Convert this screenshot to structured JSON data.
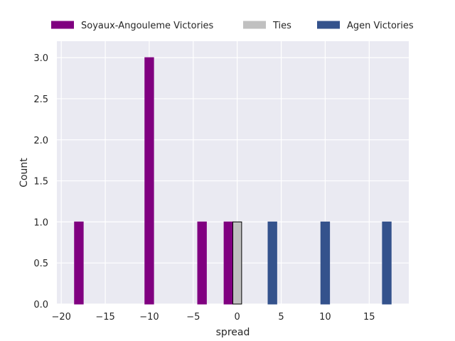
{
  "chart_data": {
    "type": "bar",
    "title": "",
    "xlabel": "spread",
    "ylabel": "Count",
    "xlim": [
      -20.5,
      19.5
    ],
    "ylim": [
      0,
      3.2
    ],
    "xticks": [
      -20,
      -15,
      -10,
      -5,
      0,
      5,
      10,
      15
    ],
    "xtick_labels": [
      "−20",
      "−15",
      "−10",
      "−5",
      "0",
      "5",
      "10",
      "15"
    ],
    "yticks": [
      0,
      0.5,
      1,
      1.5,
      2,
      2.5,
      3
    ],
    "ytick_labels": [
      "0.0",
      "0.5",
      "1.0",
      "1.5",
      "2.0",
      "2.5",
      "3.0"
    ],
    "grid": true,
    "legend_position": "top",
    "series": [
      {
        "name": "Soyaux-Angouleme Victories",
        "color": "#800080",
        "edgecolor": "#800080",
        "bins": [
          {
            "start": -18.5,
            "end": -17.5,
            "count": 1
          },
          {
            "start": -10.5,
            "end": -9.5,
            "count": 3
          },
          {
            "start": -4.5,
            "end": -3.5,
            "count": 1
          },
          {
            "start": -1.5,
            "end": -0.5,
            "count": 1
          }
        ]
      },
      {
        "name": "Ties",
        "color": "#c0c0c0",
        "edgecolor": "#000000",
        "bins": [
          {
            "start": -0.5,
            "end": 0.5,
            "count": 1
          }
        ]
      },
      {
        "name": "Agen Victories",
        "color": "#34528c",
        "edgecolor": "#34528c",
        "bins": [
          {
            "start": 3.5,
            "end": 4.5,
            "count": 1
          },
          {
            "start": 9.5,
            "end": 10.5,
            "count": 1
          },
          {
            "start": 16.5,
            "end": 17.5,
            "count": 1
          }
        ]
      }
    ]
  }
}
